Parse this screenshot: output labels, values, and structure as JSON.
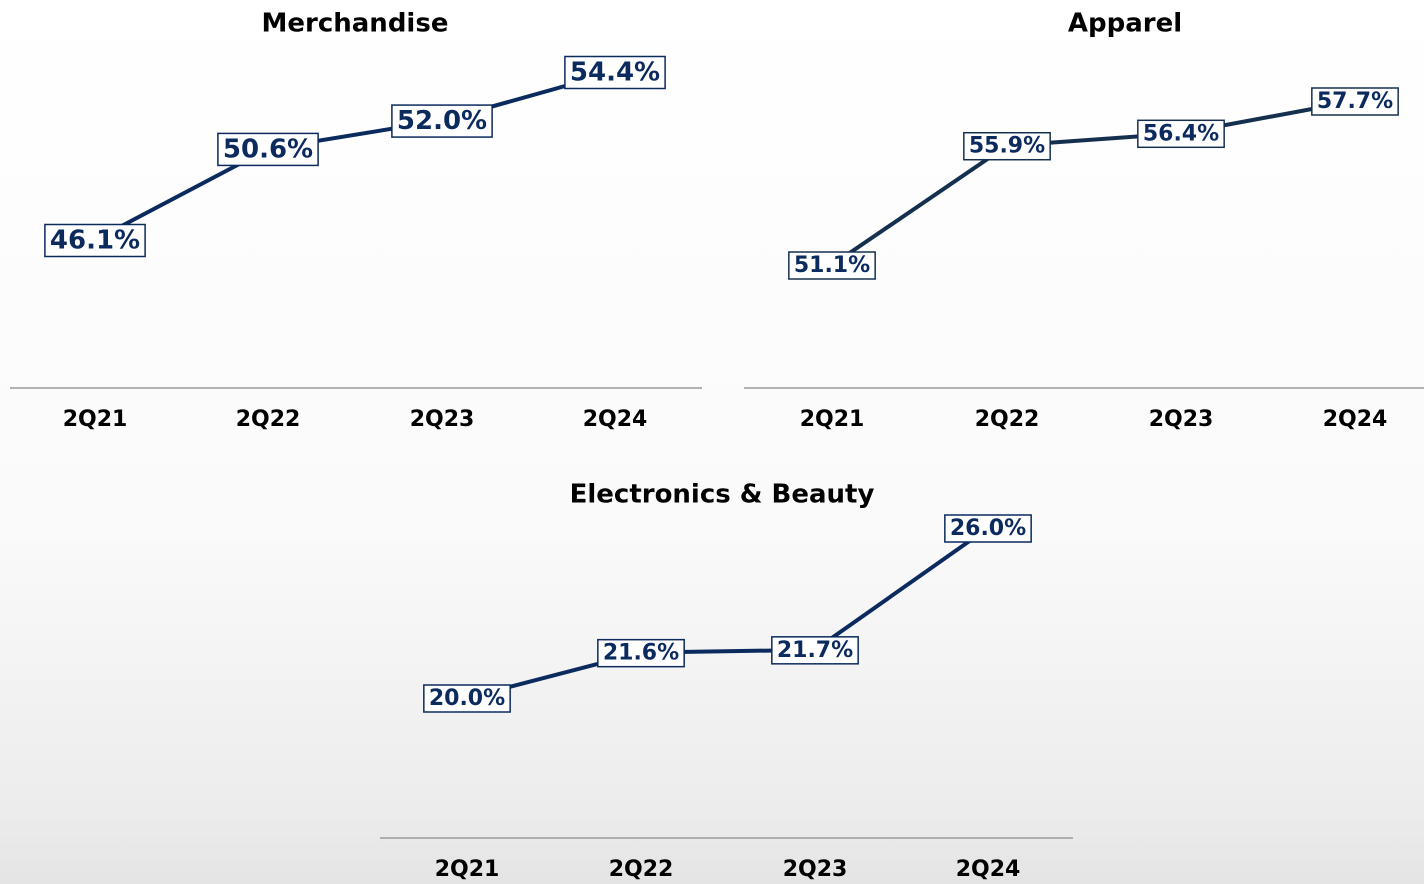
{
  "chart_data": [
    {
      "type": "line",
      "title": "Merchandise",
      "categories": [
        "2Q21",
        "2Q22",
        "2Q23",
        "2Q24"
      ],
      "values": [
        46.1,
        50.6,
        52.0,
        54.4
      ],
      "value_labels": [
        "46.1%",
        "50.6%",
        "52.0%",
        "54.4%"
      ],
      "color": "#0b2a5e"
    },
    {
      "type": "line",
      "title": "Apparel",
      "categories": [
        "2Q21",
        "2Q22",
        "2Q23",
        "2Q24"
      ],
      "values": [
        51.1,
        55.9,
        56.4,
        57.7
      ],
      "value_labels": [
        "51.1%",
        "55.9%",
        "56.4%",
        "57.7%"
      ],
      "color": "#15304f"
    },
    {
      "type": "line",
      "title": "Electronics & Beauty",
      "categories": [
        "2Q21",
        "2Q22",
        "2Q23",
        "2Q24"
      ],
      "values": [
        20.0,
        21.6,
        21.7,
        26.0
      ],
      "value_labels": [
        "20.0%",
        "21.6%",
        "21.7%",
        "26.0%"
      ],
      "color": "#0b2a5e"
    }
  ]
}
